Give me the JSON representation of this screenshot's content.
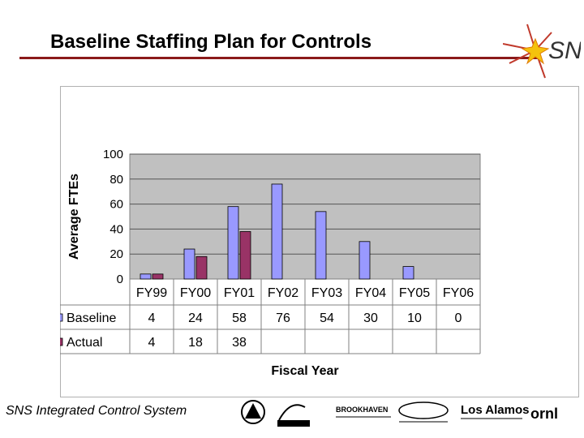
{
  "slide": {
    "title": "Baseline Staffing Plan for Controls",
    "footer": "SNS Integrated Control System",
    "logo_text": "SNS",
    "partner_logos": [
      {
        "icon": "argonne-logo-icon",
        "text": ""
      },
      {
        "icon": "berkeley-lab-logo-icon",
        "text": ""
      },
      {
        "icon": "brookhaven-logo-icon",
        "text": "BROOKHAVEN"
      },
      {
        "icon": "jefferson-lab-logo-icon",
        "text": ""
      },
      {
        "icon": "los-alamos-logo-icon",
        "text": "Los Alamos"
      },
      {
        "icon": "ornl-logo-icon",
        "text": "ornl"
      }
    ]
  },
  "colors": {
    "baseline": "#9999ff",
    "actual": "#993366",
    "plot_bg": "#c0c0c0",
    "title_rule": "#8b1a1a"
  },
  "chart_data": {
    "type": "bar",
    "categories": [
      "FY99",
      "FY00",
      "FY01",
      "FY02",
      "FY03",
      "FY04",
      "FY05",
      "FY06"
    ],
    "series": [
      {
        "name": "Baseline",
        "values": [
          4,
          24,
          58,
          76,
          54,
          30,
          10,
          0
        ],
        "table": [
          "4",
          "24",
          "58",
          "76",
          "54",
          "30",
          "10",
          "0"
        ]
      },
      {
        "name": "Actual",
        "values": [
          4,
          18,
          38,
          null,
          null,
          null,
          null,
          null
        ],
        "table": [
          "4",
          "18",
          "38",
          "",
          "",
          "",
          "",
          ""
        ]
      }
    ],
    "xlabel": "Fiscal Year",
    "ylabel": "Average FTEs",
    "ylim": [
      0,
      100
    ],
    "yticks": [
      "0",
      "20",
      "40",
      "60",
      "80",
      "100"
    ],
    "grid": true,
    "legend": "data-table"
  }
}
